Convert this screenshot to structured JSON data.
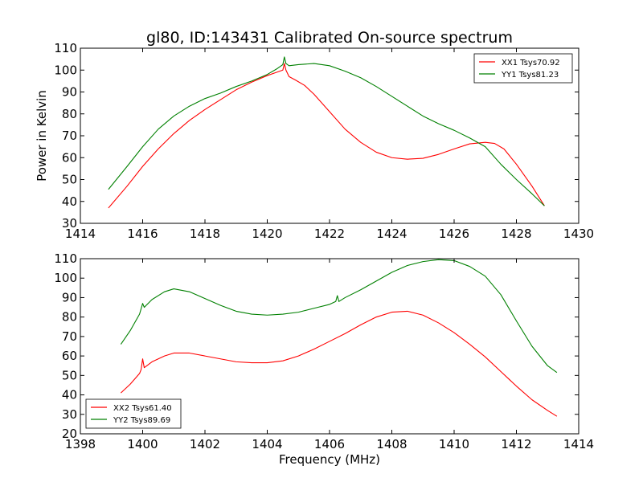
{
  "chart_data": [
    {
      "type": "line",
      "title": "gl80, ID:143431 Calibrated On-source spectrum",
      "xlabel": "",
      "ylabel": "Power in Kelvin",
      "xlim": [
        1414,
        1430
      ],
      "ylim": [
        30,
        110
      ],
      "xticks": [
        1414,
        1416,
        1418,
        1420,
        1422,
        1424,
        1426,
        1428,
        1430
      ],
      "yticks": [
        30,
        40,
        50,
        60,
        70,
        80,
        90,
        100,
        110
      ],
      "grid": false,
      "legend_position": "top-right",
      "series": [
        {
          "name": "XX1 Tsys70.92",
          "color": "#ff0000",
          "x": [
            1414.9,
            1415.5,
            1416,
            1416.5,
            1417,
            1417.5,
            1418,
            1418.5,
            1419,
            1419.5,
            1420,
            1420.3,
            1420.5,
            1420.55,
            1420.6,
            1420.7,
            1420.9,
            1421.2,
            1421.5,
            1422,
            1422.5,
            1423,
            1423.5,
            1424,
            1424.5,
            1425,
            1425.5,
            1426,
            1426.5,
            1427,
            1427.3,
            1427.6,
            1428,
            1428.5,
            1428.9
          ],
          "y": [
            37,
            47,
            56,
            64,
            71,
            77,
            82,
            86.5,
            91,
            94.5,
            97.5,
            99,
            100,
            103,
            100,
            97,
            95.5,
            93,
            89,
            81,
            73,
            67,
            62.5,
            60,
            59.3,
            59.7,
            61.5,
            64,
            66.3,
            67,
            66.5,
            64,
            57,
            47,
            38
          ]
        },
        {
          "name": "YY1 Tsys81.23",
          "color": "#008000",
          "x": [
            1414.9,
            1415.5,
            1416,
            1416.5,
            1417,
            1417.5,
            1418,
            1418.5,
            1419,
            1419.5,
            1420,
            1420.3,
            1420.5,
            1420.55,
            1420.6,
            1420.7,
            1421,
            1421.5,
            1422,
            1422.5,
            1423,
            1423.5,
            1424,
            1424.5,
            1425,
            1425.5,
            1426,
            1426.5,
            1427,
            1427.5,
            1428,
            1428.5,
            1428.9
          ],
          "y": [
            45.5,
            56,
            65,
            73,
            79,
            83.5,
            87,
            89.5,
            92.5,
            95,
            98,
            100.5,
            102.5,
            106,
            103,
            102,
            102.5,
            103,
            102,
            99.5,
            96.5,
            92.5,
            88,
            83.5,
            79,
            75.5,
            72.5,
            69,
            65,
            57,
            50,
            43.5,
            38
          ]
        }
      ]
    },
    {
      "type": "line",
      "title": "",
      "xlabel": "Frequency (MHz)",
      "ylabel": "",
      "xlim": [
        1398,
        1414
      ],
      "ylim": [
        20,
        110
      ],
      "xticks": [
        1398,
        1400,
        1402,
        1404,
        1406,
        1408,
        1410,
        1412,
        1414
      ],
      "yticks": [
        20,
        30,
        40,
        50,
        60,
        70,
        80,
        90,
        100,
        110
      ],
      "grid": false,
      "legend_position": "bottom-left",
      "series": [
        {
          "name": "XX2 Tsys61.40",
          "color": "#ff0000",
          "x": [
            1399.3,
            1399.6,
            1399.9,
            1399.95,
            1400.0,
            1400.05,
            1400.3,
            1400.7,
            1401,
            1401.5,
            1402,
            1402.5,
            1403,
            1403.5,
            1404,
            1404.5,
            1405,
            1405.5,
            1406,
            1406.5,
            1407,
            1407.5,
            1408,
            1408.5,
            1409,
            1409.5,
            1410,
            1410.5,
            1411,
            1411.5,
            1412,
            1412.5,
            1413,
            1413.3
          ],
          "y": [
            41,
            45.5,
            51,
            53,
            58.5,
            54,
            57,
            60,
            61.5,
            61.5,
            60,
            58.5,
            57,
            56.5,
            56.5,
            57.5,
            60,
            63.5,
            67.5,
            71.5,
            76,
            80,
            82.5,
            83,
            81,
            77,
            72,
            66,
            59.5,
            52,
            44.5,
            37.5,
            32,
            29
          ]
        },
        {
          "name": "YY2 Tsys89.69",
          "color": "#008000",
          "x": [
            1399.3,
            1399.6,
            1399.9,
            1400.0,
            1400.05,
            1400.3,
            1400.7,
            1401,
            1401.5,
            1402,
            1402.5,
            1403,
            1403.5,
            1404,
            1404.5,
            1405,
            1405.5,
            1406,
            1406.2,
            1406.25,
            1406.3,
            1406.5,
            1407,
            1407.5,
            1408,
            1408.5,
            1409,
            1409.5,
            1410,
            1410.5,
            1411,
            1411.5,
            1412,
            1412.5,
            1413,
            1413.3
          ],
          "y": [
            66,
            73,
            81.5,
            87,
            85,
            89,
            93,
            94.5,
            93,
            89.5,
            86,
            83,
            81.5,
            81,
            81.5,
            82.5,
            84.5,
            86.5,
            88,
            91,
            88,
            90,
            94,
            98.5,
            103,
            106.5,
            108.5,
            109.5,
            109,
            106,
            101,
            91.5,
            78,
            65,
            55,
            51.5
          ]
        }
      ]
    }
  ]
}
